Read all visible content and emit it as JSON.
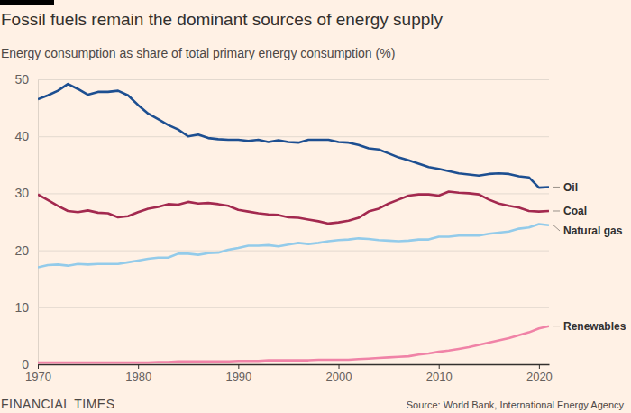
{
  "chart_data": {
    "type": "line",
    "title": "Fossil fuels remain the dominant sources of energy supply",
    "subtitle": "Energy consumption as share of total primary energy consumption (%)",
    "source": "Source: World Bank, International Energy Agency",
    "logo": "FINANCIAL TIMES",
    "x": [
      1970,
      1971,
      1972,
      1973,
      1974,
      1975,
      1976,
      1977,
      1978,
      1979,
      1980,
      1981,
      1982,
      1983,
      1984,
      1985,
      1986,
      1987,
      1988,
      1989,
      1990,
      1991,
      1992,
      1993,
      1994,
      1995,
      1996,
      1997,
      1998,
      1999,
      2000,
      2001,
      2002,
      2003,
      2004,
      2005,
      2006,
      2007,
      2008,
      2009,
      2010,
      2011,
      2012,
      2013,
      2014,
      2015,
      2016,
      2017,
      2018,
      2019,
      2020,
      2021
    ],
    "series": [
      {
        "name": "Oil",
        "color": "#1d4f91",
        "values": [
          46.5,
          47.2,
          48.0,
          49.2,
          48.3,
          47.3,
          47.8,
          47.8,
          48.0,
          47.2,
          45.5,
          44.0,
          43.0,
          42.0,
          41.2,
          40.0,
          40.3,
          39.7,
          39.5,
          39.4,
          39.4,
          39.2,
          39.4,
          39.0,
          39.3,
          39.0,
          38.9,
          39.4,
          39.4,
          39.4,
          39.0,
          38.9,
          38.5,
          37.9,
          37.7,
          37.0,
          36.3,
          35.8,
          35.2,
          34.6,
          34.3,
          33.9,
          33.5,
          33.3,
          33.1,
          33.4,
          33.5,
          33.4,
          33.0,
          32.8,
          31.0,
          31.1
        ]
      },
      {
        "name": "Coal",
        "color": "#a3294f",
        "values": [
          29.8,
          28.8,
          27.8,
          26.9,
          26.7,
          27.0,
          26.6,
          26.5,
          25.8,
          26.0,
          26.7,
          27.3,
          27.6,
          28.1,
          28.0,
          28.5,
          28.2,
          28.3,
          28.1,
          27.8,
          27.1,
          26.8,
          26.5,
          26.3,
          26.2,
          25.8,
          25.7,
          25.4,
          25.1,
          24.7,
          24.9,
          25.2,
          25.7,
          26.8,
          27.3,
          28.2,
          28.9,
          29.6,
          29.8,
          29.8,
          29.6,
          30.3,
          30.1,
          30.0,
          29.8,
          28.9,
          28.2,
          27.8,
          27.5,
          26.9,
          26.8,
          26.9
        ]
      },
      {
        "name": "Natural gas",
        "color": "#93cbea",
        "values": [
          17.0,
          17.4,
          17.5,
          17.3,
          17.6,
          17.5,
          17.6,
          17.6,
          17.6,
          17.9,
          18.2,
          18.5,
          18.7,
          18.7,
          19.4,
          19.4,
          19.2,
          19.5,
          19.6,
          20.1,
          20.4,
          20.8,
          20.8,
          20.9,
          20.7,
          21.0,
          21.3,
          21.1,
          21.3,
          21.6,
          21.8,
          21.9,
          22.1,
          22.0,
          21.8,
          21.7,
          21.6,
          21.7,
          21.9,
          21.9,
          22.4,
          22.4,
          22.6,
          22.6,
          22.6,
          22.9,
          23.1,
          23.3,
          23.8,
          24.0,
          24.6,
          24.4
        ]
      },
      {
        "name": "Renewables",
        "color": "#f083a7",
        "values": [
          0.3,
          0.3,
          0.3,
          0.3,
          0.3,
          0.3,
          0.3,
          0.3,
          0.3,
          0.3,
          0.3,
          0.3,
          0.4,
          0.4,
          0.5,
          0.5,
          0.5,
          0.5,
          0.5,
          0.5,
          0.6,
          0.6,
          0.6,
          0.7,
          0.7,
          0.7,
          0.7,
          0.7,
          0.8,
          0.8,
          0.8,
          0.8,
          0.9,
          1.0,
          1.1,
          1.2,
          1.3,
          1.4,
          1.7,
          1.9,
          2.2,
          2.4,
          2.7,
          3.0,
          3.4,
          3.8,
          4.2,
          4.6,
          5.1,
          5.6,
          6.3,
          6.7
        ]
      }
    ],
    "xlim": [
      1970,
      2021
    ],
    "xticks": [
      1970,
      1980,
      1990,
      2000,
      2010,
      2020
    ],
    "ylim": [
      0,
      50
    ],
    "yticks": [
      0,
      10,
      20,
      30,
      40,
      50
    ],
    "grid": true
  }
}
